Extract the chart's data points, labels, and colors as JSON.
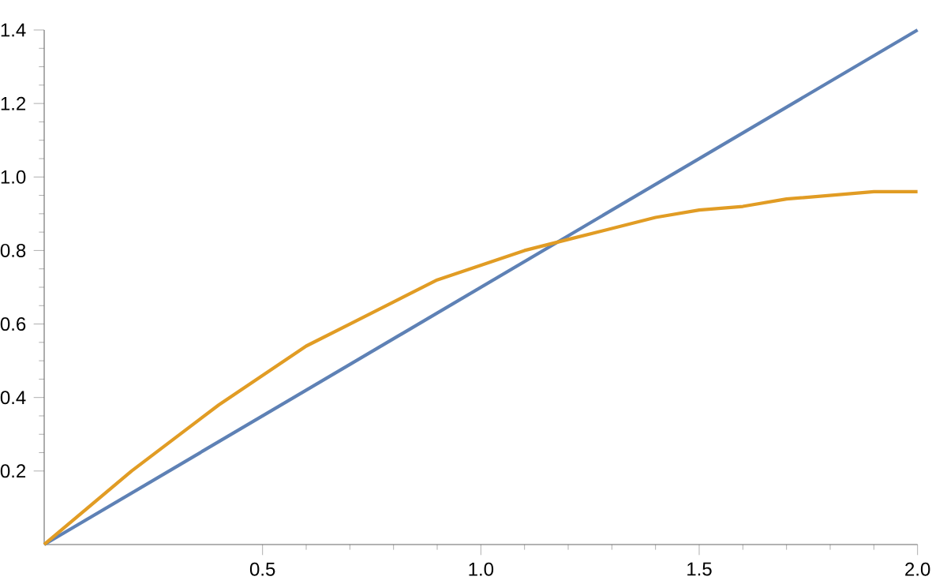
{
  "chart_data": {
    "type": "line",
    "xlim": [
      0,
      2
    ],
    "ylim": [
      0,
      1.4
    ],
    "xticks": [
      {
        "value": 0.5,
        "label": "0.5"
      },
      {
        "value": 1,
        "label": "1.0"
      },
      {
        "value": 1.5,
        "label": "1.5"
      },
      {
        "value": 2,
        "label": "2.0"
      }
    ],
    "yticks": [
      {
        "value": 0.2,
        "label": "0.2"
      },
      {
        "value": 0.4,
        "label": "0.4"
      },
      {
        "value": 0.6,
        "label": "0.6"
      },
      {
        "value": 0.8,
        "label": "0.8"
      },
      {
        "value": 1,
        "label": "1.0"
      },
      {
        "value": 1.2,
        "label": "1.2"
      },
      {
        "value": 1.4,
        "label": "1.4"
      }
    ],
    "series": [
      {
        "color": "#5e81b5",
        "x": [
          0,
          2
        ],
        "values": [
          0,
          1.4
        ]
      },
      {
        "color": "#e19c24",
        "x": [
          0,
          0.1,
          0.2,
          0.3,
          0.4,
          0.5,
          0.6,
          0.7,
          0.8,
          0.9,
          1.0,
          1.1,
          1.2,
          1.3,
          1.4,
          1.5,
          1.6,
          1.7,
          1.8,
          1.9,
          2.0
        ],
        "values": [
          0,
          0.1,
          0.2,
          0.29,
          0.38,
          0.46,
          0.54,
          0.6,
          0.66,
          0.72,
          0.76,
          0.8,
          0.83,
          0.86,
          0.89,
          0.91,
          0.92,
          0.94,
          0.95,
          0.96,
          0.96
        ]
      }
    ]
  }
}
